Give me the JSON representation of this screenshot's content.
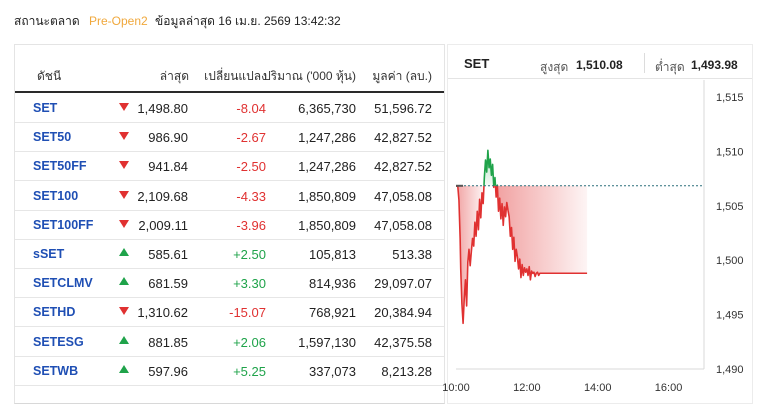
{
  "status": {
    "label": "สถานะตลาด",
    "value": "Pre-Open2",
    "updated": "ข้อมูลล่าสุด 16 เม.ย. 2569 13:42:32"
  },
  "table": {
    "headers": {
      "index": "ดัชนี",
      "last": "ล่าสุด",
      "change": "เปลี่ยนแปลง",
      "volume": "ปริมาณ ('000 หุ้น)",
      "value": "มูลค่า (ลบ.)"
    },
    "rows": [
      {
        "symbol": "SET",
        "direction": "down",
        "last": "1,498.80",
        "change": "-8.04",
        "volume": "6,365,730",
        "value": "51,596.72"
      },
      {
        "symbol": "SET50",
        "direction": "down",
        "last": "986.90",
        "change": "-2.67",
        "volume": "1,247,286",
        "value": "42,827.52"
      },
      {
        "symbol": "SET50FF",
        "direction": "down",
        "last": "941.84",
        "change": "-2.50",
        "volume": "1,247,286",
        "value": "42,827.52"
      },
      {
        "symbol": "SET100",
        "direction": "down",
        "last": "2,109.68",
        "change": "-4.33",
        "volume": "1,850,809",
        "value": "47,058.08"
      },
      {
        "symbol": "SET100FF",
        "direction": "down",
        "last": "2,009.11",
        "change": "-3.96",
        "volume": "1,850,809",
        "value": "47,058.08"
      },
      {
        "symbol": "sSET",
        "direction": "up",
        "last": "585.61",
        "change": "+2.50",
        "volume": "105,813",
        "value": "513.38"
      },
      {
        "symbol": "SETCLMV",
        "direction": "up",
        "last": "681.59",
        "change": "+3.30",
        "volume": "814,936",
        "value": "29,097.07"
      },
      {
        "symbol": "SETHD",
        "direction": "down",
        "last": "1,310.62",
        "change": "-15.07",
        "volume": "768,921",
        "value": "20,384.94"
      },
      {
        "symbol": "SETESG",
        "direction": "up",
        "last": "881.85",
        "change": "+2.06",
        "volume": "1,597,130",
        "value": "42,375.58"
      },
      {
        "symbol": "SETWB",
        "direction": "up",
        "last": "597.96",
        "change": "+5.25",
        "volume": "337,073",
        "value": "8,213.28"
      }
    ]
  },
  "chart_panel": {
    "title": "SET",
    "high_label": "สูงสุด",
    "high_value": "1,510.08",
    "low_label": "ต่ำสุด",
    "low_value": "1,493.98"
  },
  "colors": {
    "down": "#e03131",
    "up": "#1fa34a",
    "index_link": "#1f4fb4",
    "pre_open": "#f0a83c",
    "baseline": "#2a6f7a"
  },
  "chart_data": {
    "type": "line",
    "baseline": 1506.84,
    "ylim": [
      1490,
      1515
    ],
    "yticks": [
      "1,490",
      "1,495",
      "1,500",
      "1,505",
      "1,510",
      "1,515"
    ],
    "yticks_values": [
      1490,
      1495,
      1500,
      1505,
      1510,
      1515
    ],
    "xticks": [
      "10:00",
      "12:00",
      "14:00",
      "16:00"
    ],
    "xticks_values": [
      600,
      720,
      840,
      960
    ],
    "xlim": [
      600,
      1020
    ],
    "series": [
      {
        "x": [
          600,
          603,
          605,
          607,
          608,
          610,
          612,
          614,
          616,
          618,
          620,
          622,
          624,
          626,
          628,
          630,
          632,
          634,
          636,
          638,
          640,
          642,
          644,
          646,
          648,
          650,
          652,
          654,
          656,
          658,
          660,
          662,
          664,
          666,
          668,
          670,
          672,
          674,
          676,
          678,
          680,
          682,
          684,
          686,
          688,
          690,
          692,
          694,
          696,
          698,
          700,
          702,
          704,
          706,
          708,
          710,
          712,
          714,
          716,
          718,
          720,
          722,
          724,
          726,
          728,
          730,
          732,
          734,
          736,
          738,
          740,
          742,
          744,
          746,
          748,
          750,
          760,
          770,
          780,
          790,
          800,
          810,
          820,
          822
        ],
        "y": [
          1506.8,
          1506.8,
          1505.5,
          1502.0,
          1499.2,
          1496.0,
          1494.2,
          1496.5,
          1498.2,
          1495.8,
          1499.8,
          1501.0,
          1499.5,
          1500.8,
          1502.0,
          1501.3,
          1503.5,
          1502.2,
          1504.5,
          1502.8,
          1505.6,
          1503.9,
          1506.2,
          1505.2,
          1507.6,
          1509.2,
          1508.1,
          1510.1,
          1508.5,
          1509.3,
          1507.8,
          1508.8,
          1506.7,
          1507.6,
          1505.8,
          1506.9,
          1504.5,
          1505.7,
          1503.8,
          1505.2,
          1503.2,
          1504.9,
          1504.0,
          1505.3,
          1504.6,
          1504.0,
          1502.2,
          1503.0,
          1501.0,
          1502.1,
          1499.9,
          1501.0,
          1500.3,
          1499.2,
          1500.1,
          1498.4,
          1499.6,
          1498.6,
          1499.3,
          1498.9,
          1499.2,
          1498.6,
          1499.4,
          1498.2,
          1499.0,
          1498.8,
          1498.9,
          1498.5,
          1498.8,
          1498.9,
          1498.6,
          1498.8,
          1498.8,
          1498.8,
          1498.8,
          1498.8,
          1498.8,
          1498.8,
          1498.8,
          1498.8,
          1498.8,
          1498.8,
          1498.8,
          1498.8
        ]
      }
    ]
  }
}
